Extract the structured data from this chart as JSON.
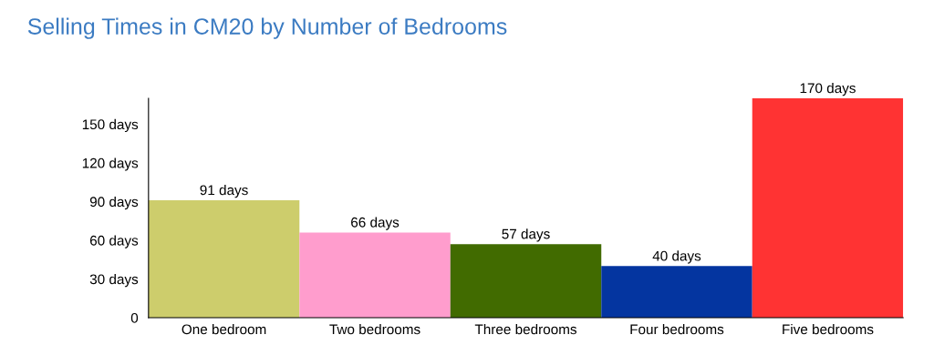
{
  "chart_data": {
    "type": "bar",
    "title": "Selling Times in CM20 by Number of Bedrooms",
    "categories": [
      "One bedroom",
      "Two bedrooms",
      "Three bedrooms",
      "Four bedrooms",
      "Five bedrooms"
    ],
    "values": [
      91,
      66,
      57,
      40,
      170
    ],
    "colors": [
      "#cdcd6c",
      "#ff9dcd",
      "#416b00",
      "#0435a0",
      "#ff3333"
    ],
    "value_labels": [
      "91 days",
      "66 days",
      "57 days",
      "40 days",
      "170 days"
    ],
    "ylim": [
      0,
      170
    ],
    "yticks": [
      0,
      {
        "value": 30,
        "label": "30 days"
      },
      {
        "value": 60,
        "label": "60 days"
      },
      {
        "value": 90,
        "label": "90 days"
      },
      {
        "value": 120,
        "label": "120 days"
      },
      {
        "value": 150,
        "label": "150 days"
      }
    ],
    "grid": false,
    "legend": false
  }
}
